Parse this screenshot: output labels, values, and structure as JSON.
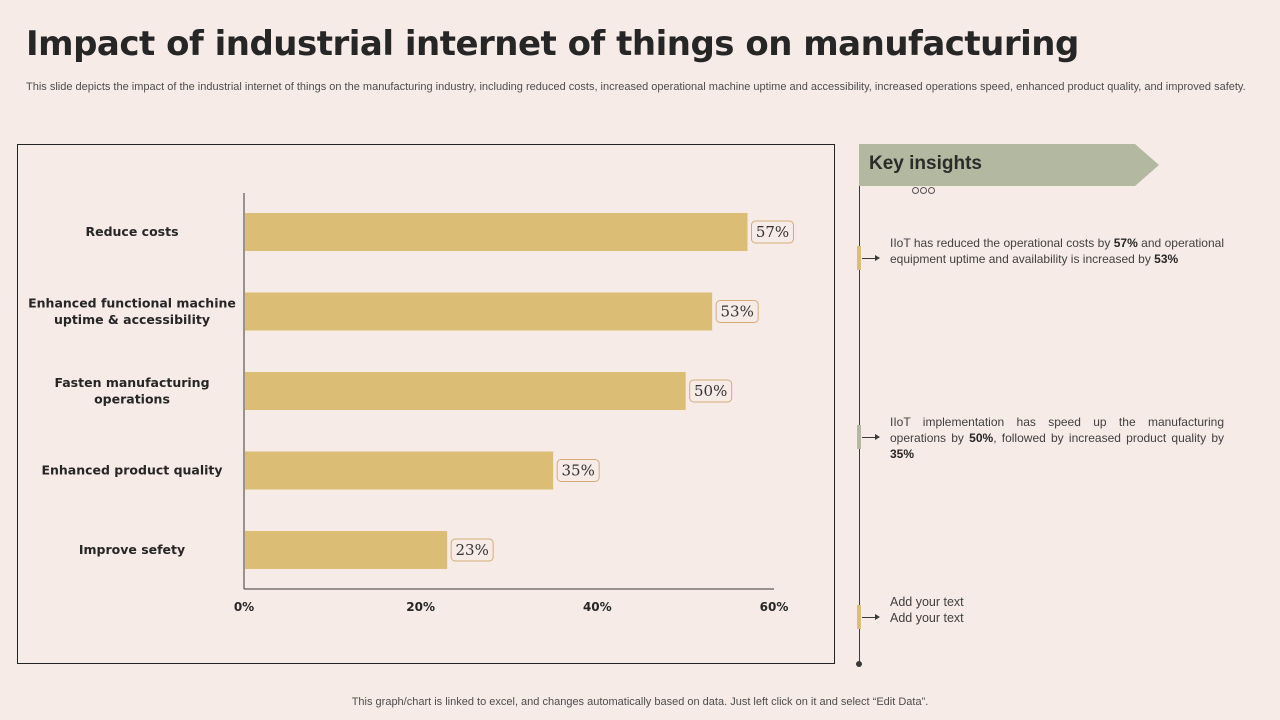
{
  "header": {
    "title": "Impact of industrial internet of things on manufacturing",
    "description": "This slide depicts the impact of the industrial internet of things on the manufacturing industry, including reduced costs, increased operational machine uptime and accessibility, increased operations speed, enhanced product quality, and improved safety."
  },
  "chart_data": {
    "type": "bar",
    "orientation": "horizontal",
    "categories": [
      [
        "Reduce costs"
      ],
      [
        "Enhanced functional machine",
        "uptime & accessibility"
      ],
      [
        "Fasten manufacturing",
        "operations"
      ],
      [
        "Enhanced product quality"
      ],
      [
        "Improve sefety"
      ]
    ],
    "values": [
      57,
      53,
      50,
      35,
      23
    ],
    "value_labels": [
      "57%",
      "53%",
      "50%",
      "35%",
      "23%"
    ],
    "xlim": [
      0,
      60
    ],
    "x_ticks": [
      0,
      20,
      40,
      60
    ],
    "x_tick_labels": [
      "0%",
      "20%",
      "40%",
      "60%"
    ],
    "title": "",
    "xlabel": "",
    "ylabel": "",
    "bar_color": "#dcbd76",
    "label_border_color": "#d4ab78"
  },
  "insights": {
    "title": "Key insights",
    "items": [
      {
        "segments": [
          {
            "text": "IIoT has reduced the operational costs by ",
            "bold": false
          },
          {
            "text": "57%",
            "bold": true
          },
          {
            "text": "  and operational equipment uptime and availability is increased by ",
            "bold": false
          },
          {
            "text": "53%",
            "bold": true
          }
        ],
        "marker_color": "#dcbd76"
      },
      {
        "segments": [
          {
            "text": "IIoT implementation has speed up the manufacturing operations by ",
            "bold": false
          },
          {
            "text": "50%",
            "bold": true
          },
          {
            "text": ", followed by increased product quality by ",
            "bold": false
          },
          {
            "text": "35%",
            "bold": true
          }
        ],
        "marker_color": "#b2b9a0"
      },
      {
        "lines": [
          "Add your text",
          "Add your text"
        ],
        "marker_color": "#dcbd76"
      }
    ]
  },
  "footer": {
    "note": "This graph/chart is linked to excel, and changes automatically based on data. Just left click on it and select “Edit Data”."
  },
  "colors": {
    "background": "#f6ebe7",
    "accent_green": "#b2b9a0",
    "accent_gold": "#dcbd76"
  }
}
